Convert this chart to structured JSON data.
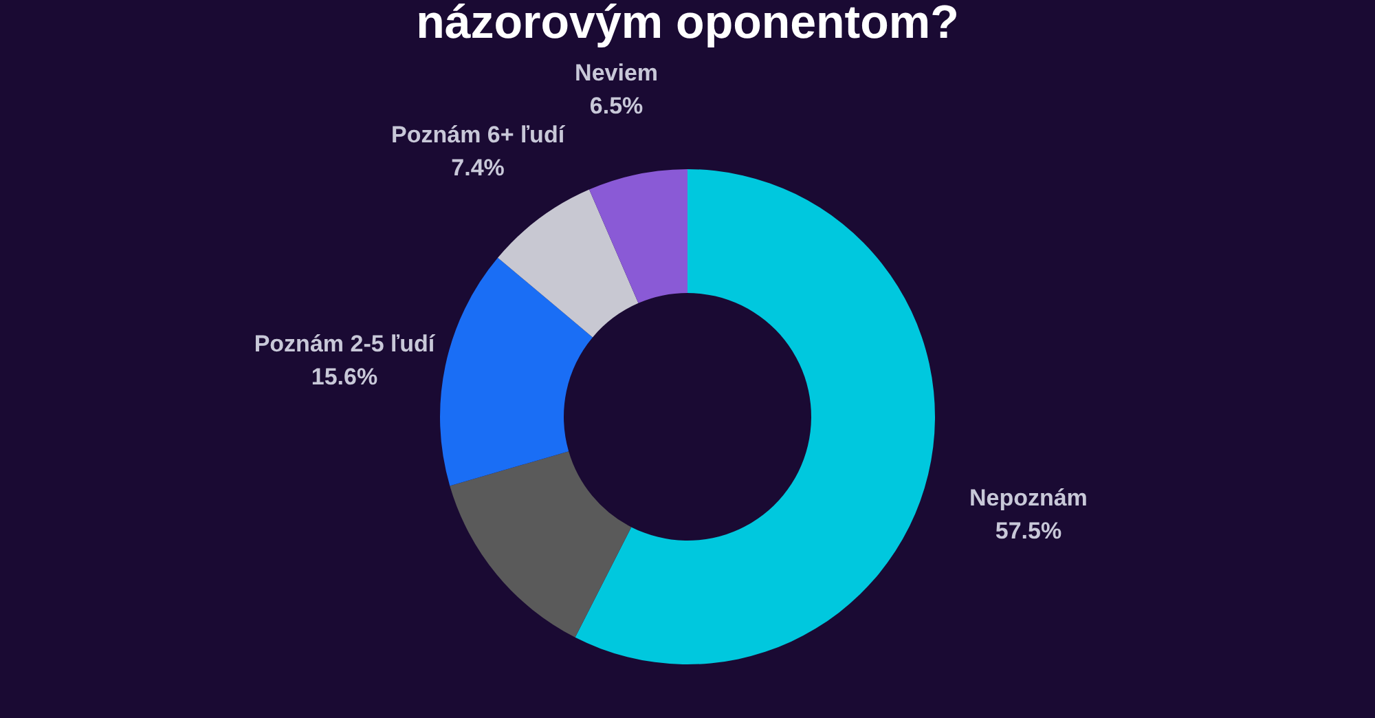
{
  "chart_data": {
    "type": "donut",
    "title": "názorovým oponentom?",
    "categories": [
      "Nepoznám",
      null,
      "Poznám 2-5 ľudí",
      "Poznám 6+ ľudí",
      "Neviem"
    ],
    "values": [
      57.5,
      13.0,
      15.6,
      7.4,
      6.5
    ],
    "value_labels": [
      "57.5%",
      null,
      "15.6%",
      "7.4%",
      "6.5%"
    ],
    "colors": [
      "#00c8de",
      "#5a5a5a",
      "#1a6ef5",
      "#c8c8d2",
      "#8a5ad6"
    ]
  }
}
